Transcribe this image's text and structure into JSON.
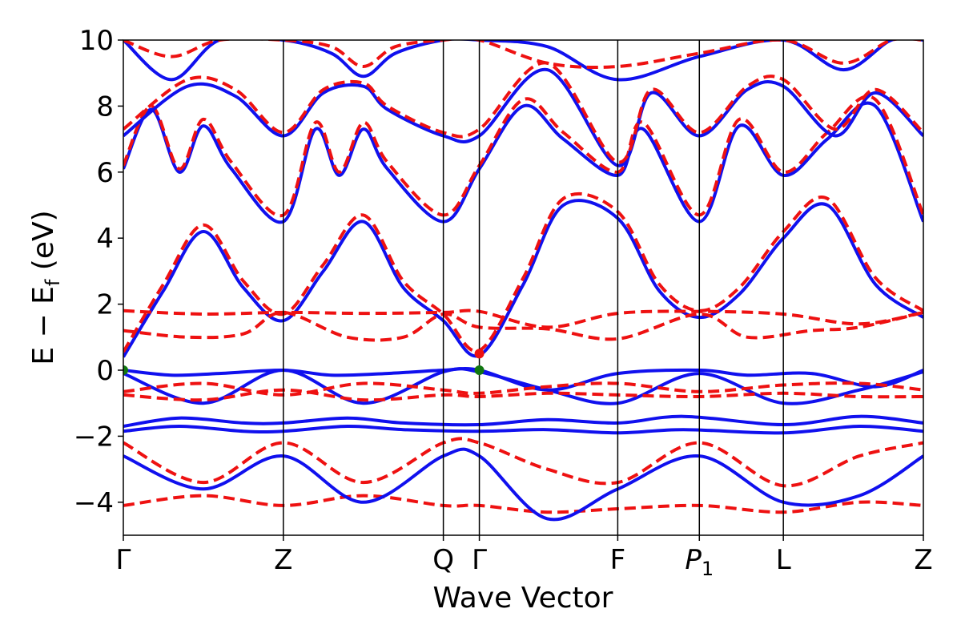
{
  "chart_data": {
    "type": "line",
    "title": "",
    "xlabel": "Wave Vector",
    "ylabel": "E − E_f (eV)",
    "ylabel_main": "E − E",
    "ylabel_sub": "f",
    "ylabel_unit": " (eV)",
    "ylim": [
      -5,
      10
    ],
    "yticks": [
      -4,
      -2,
      0,
      2,
      4,
      6,
      8,
      10
    ],
    "ytick_labels": [
      "−4",
      "−2",
      "0",
      "2",
      "4",
      "6",
      "8",
      "10"
    ],
    "xlim": [
      0,
      10
    ],
    "kpoints": [
      {
        "label": "Γ",
        "sub": "",
        "x": 0
      },
      {
        "label": "Z",
        "sub": "",
        "x": 2.0
      },
      {
        "label": "Q",
        "sub": "",
        "x": 4.0
      },
      {
        "label": "Γ",
        "sub": "",
        "x": 4.45
      },
      {
        "label": "F",
        "sub": "",
        "x": 6.18
      },
      {
        "label": "P",
        "sub": "1",
        "x": 7.2
      },
      {
        "label": "L",
        "sub": "",
        "x": 8.25
      },
      {
        "label": "Z",
        "sub": "",
        "x": 10.0
      }
    ],
    "colors": {
      "blue": "#1010ee",
      "red": "#ee1111",
      "green": "#117711",
      "black": "#000000"
    },
    "markers": [
      {
        "x": 0,
        "y": 0.0,
        "color": "green"
      },
      {
        "x": 4.45,
        "y": 0.0,
        "color": "green"
      },
      {
        "x": 4.45,
        "y": 0.5,
        "color": "red"
      }
    ],
    "series": [
      {
        "name": "blue-cb1",
        "style": "solid",
        "color": "blue",
        "x": [
          0,
          0.5,
          1.0,
          1.5,
          2.0,
          2.5,
          3.0,
          3.5,
          4.0,
          4.45,
          5.0,
          5.5,
          6.18,
          6.7,
          7.2,
          7.7,
          8.25,
          8.8,
          9.4,
          10.0
        ],
        "y": [
          0.4,
          2.4,
          4.2,
          2.5,
          1.5,
          3.0,
          4.5,
          2.5,
          1.5,
          0.45,
          2.6,
          5.0,
          4.6,
          2.4,
          1.6,
          2.3,
          4.0,
          5.0,
          2.6,
          1.6
        ]
      },
      {
        "name": "red-cb1",
        "style": "dashed",
        "color": "red",
        "x": [
          0,
          0.5,
          1.0,
          1.5,
          2.0,
          2.5,
          3.0,
          3.5,
          4.0,
          4.45,
          5.0,
          5.5,
          6.18,
          6.7,
          7.2,
          7.7,
          8.25,
          8.8,
          9.4,
          10.0
        ],
        "y": [
          0.55,
          2.6,
          4.4,
          2.7,
          1.7,
          3.2,
          4.7,
          2.7,
          1.7,
          0.6,
          2.8,
          5.2,
          4.8,
          2.6,
          1.8,
          2.5,
          4.2,
          5.2,
          2.8,
          1.8
        ]
      },
      {
        "name": "red-flat-a",
        "style": "dashed",
        "color": "red",
        "x": [
          0,
          1.0,
          2.0,
          3.0,
          4.0,
          4.45,
          5.3,
          6.18,
          7.2,
          8.25,
          9.2,
          10.0
        ],
        "y": [
          1.8,
          1.7,
          1.75,
          1.72,
          1.75,
          1.78,
          1.3,
          1.72,
          1.78,
          1.7,
          1.4,
          1.75
        ]
      },
      {
        "name": "red-flat-b",
        "style": "dashed",
        "color": "red",
        "x": [
          0,
          0.8,
          1.5,
          2.0,
          2.8,
          3.5,
          4.0,
          4.45,
          5.3,
          6.18,
          7.2,
          7.8,
          8.6,
          9.2,
          10.0
        ],
        "y": [
          1.2,
          1.0,
          1.1,
          1.75,
          1.0,
          1.0,
          1.7,
          1.3,
          1.25,
          0.95,
          1.7,
          1.0,
          1.2,
          1.3,
          1.75
        ]
      },
      {
        "name": "blue-vb-top",
        "style": "solid",
        "color": "blue",
        "x": [
          0,
          0.6,
          1.2,
          2.0,
          2.6,
          3.3,
          4.0,
          4.45,
          5.3,
          6.18,
          7.2,
          7.8,
          8.6,
          9.4,
          10.0
        ],
        "y": [
          0.0,
          -0.15,
          -0.1,
          0.0,
          -0.15,
          -0.1,
          0.0,
          0.0,
          -0.6,
          -0.1,
          0.0,
          -0.15,
          -0.1,
          -0.5,
          0.0
        ]
      },
      {
        "name": "blue-vb-2",
        "style": "solid",
        "color": "blue",
        "x": [
          0,
          1.0,
          2.0,
          3.0,
          4.0,
          4.45,
          5.3,
          6.18,
          7.2,
          8.25,
          9.2,
          10.0
        ],
        "y": [
          -0.1,
          -1.0,
          0.0,
          -1.0,
          -0.05,
          -0.05,
          -0.6,
          -1.0,
          -0.1,
          -1.0,
          -0.6,
          -0.05
        ]
      },
      {
        "name": "red-vb-a",
        "style": "dashed",
        "color": "red",
        "x": [
          0,
          1.0,
          2.0,
          3.0,
          4.0,
          4.45,
          5.3,
          6.18,
          7.2,
          8.25,
          9.2,
          10.0
        ],
        "y": [
          -0.65,
          -0.4,
          -0.75,
          -0.4,
          -0.6,
          -0.7,
          -0.5,
          -0.4,
          -0.65,
          -0.45,
          -0.4,
          -0.6
        ]
      },
      {
        "name": "red-vb-b",
        "style": "dashed",
        "color": "red",
        "x": [
          0,
          1.0,
          2.0,
          3.0,
          4.0,
          4.45,
          5.3,
          6.18,
          7.2,
          8.25,
          9.2,
          10.0
        ],
        "y": [
          -0.75,
          -0.9,
          -0.6,
          -0.9,
          -0.75,
          -0.8,
          -0.7,
          -0.75,
          -0.8,
          -0.7,
          -0.8,
          -0.8
        ]
      },
      {
        "name": "blue-d1",
        "style": "solid",
        "color": "blue",
        "x": [
          0,
          0.7,
          1.5,
          2.0,
          2.8,
          3.5,
          4.45,
          5.3,
          6.18,
          7.0,
          8.25,
          9.2,
          10.0
        ],
        "y": [
          -1.7,
          -1.45,
          -1.6,
          -1.6,
          -1.45,
          -1.6,
          -1.65,
          -1.5,
          -1.6,
          -1.4,
          -1.65,
          -1.4,
          -1.6
        ]
      },
      {
        "name": "blue-d2",
        "style": "solid",
        "color": "blue",
        "x": [
          0,
          0.7,
          1.5,
          2.0,
          2.8,
          3.5,
          4.45,
          5.3,
          6.18,
          7.0,
          8.25,
          9.2,
          10.0
        ],
        "y": [
          -1.85,
          -1.7,
          -1.85,
          -1.85,
          -1.7,
          -1.8,
          -1.85,
          -1.8,
          -1.9,
          -1.8,
          -1.9,
          -1.7,
          -1.85
        ]
      },
      {
        "name": "red-vb-low1",
        "style": "dashed",
        "color": "red",
        "x": [
          0,
          1.0,
          2.0,
          3.0,
          4.0,
          4.45,
          5.3,
          6.18,
          7.2,
          8.25,
          9.2,
          10.0
        ],
        "y": [
          -2.2,
          -3.4,
          -2.2,
          -3.4,
          -2.2,
          -2.2,
          -3.0,
          -3.4,
          -2.2,
          -3.5,
          -2.6,
          -2.2
        ]
      },
      {
        "name": "red-vb-low2",
        "style": "dashed",
        "color": "red",
        "x": [
          0,
          1.0,
          2.0,
          3.0,
          4.0,
          4.45,
          5.3,
          6.18,
          7.2,
          8.25,
          9.2,
          10.0
        ],
        "y": [
          -4.1,
          -3.8,
          -4.1,
          -3.8,
          -4.1,
          -4.1,
          -4.3,
          -4.2,
          -4.1,
          -4.3,
          -4.0,
          -4.1
        ]
      },
      {
        "name": "blue-vb-low",
        "style": "solid",
        "color": "blue",
        "x": [
          0,
          1.0,
          2.0,
          3.0,
          4.0,
          4.45,
          5.3,
          6.18,
          7.2,
          8.25,
          9.2,
          10.0
        ],
        "y": [
          -2.6,
          -3.6,
          -2.6,
          -4.0,
          -2.6,
          -2.6,
          -4.5,
          -3.6,
          -2.6,
          -4.0,
          -3.8,
          -2.6
        ]
      },
      {
        "name": "blue-cb2",
        "style": "solid",
        "color": "blue",
        "x": [
          0,
          0.35,
          0.7,
          1.0,
          1.35,
          2.0,
          2.4,
          2.7,
          3.0,
          3.3,
          4.0,
          4.45,
          5.0,
          5.5,
          6.18,
          6.5,
          7.2,
          7.7,
          8.25,
          8.8,
          9.4,
          10.0
        ],
        "y": [
          6.1,
          7.9,
          6.0,
          7.4,
          6.1,
          4.5,
          7.3,
          5.9,
          7.3,
          6.1,
          4.5,
          6.1,
          8.0,
          7.0,
          5.9,
          7.3,
          4.5,
          7.4,
          5.9,
          7.0,
          8.0,
          4.5
        ]
      },
      {
        "name": "red-cb2",
        "style": "dashed",
        "color": "red",
        "x": [
          0,
          0.35,
          0.7,
          1.0,
          1.35,
          2.0,
          2.4,
          2.7,
          3.0,
          3.3,
          4.0,
          4.45,
          5.0,
          5.5,
          6.18,
          6.5,
          7.2,
          7.7,
          8.25,
          8.8,
          9.4,
          10.0
        ],
        "y": [
          6.2,
          8.0,
          6.1,
          7.6,
          6.3,
          4.7,
          7.5,
          6.0,
          7.5,
          6.3,
          4.7,
          6.2,
          8.2,
          7.2,
          6.0,
          7.5,
          4.7,
          7.6,
          6.0,
          7.2,
          8.2,
          4.7
        ]
      },
      {
        "name": "blue-cb3",
        "style": "solid",
        "color": "blue",
        "x": [
          0,
          0.8,
          1.4,
          2.0,
          2.5,
          3.0,
          3.3,
          4.0,
          4.45,
          5.3,
          6.18,
          6.6,
          7.2,
          7.8,
          8.25,
          8.9,
          9.4,
          10.0
        ],
        "y": [
          7.1,
          8.6,
          8.3,
          7.1,
          8.4,
          8.6,
          7.9,
          7.1,
          7.1,
          9.1,
          6.2,
          8.4,
          7.1,
          8.5,
          8.6,
          7.1,
          8.4,
          7.1
        ]
      },
      {
        "name": "red-cb3",
        "style": "dashed",
        "color": "red",
        "x": [
          0,
          0.8,
          1.4,
          2.0,
          2.5,
          3.0,
          3.3,
          4.0,
          4.45,
          5.3,
          6.18,
          6.6,
          7.2,
          7.8,
          8.25,
          8.9,
          9.4,
          10.0
        ],
        "y": [
          7.3,
          8.8,
          8.5,
          7.2,
          8.5,
          8.7,
          8.0,
          7.2,
          7.3,
          9.3,
          6.3,
          8.5,
          7.2,
          8.6,
          8.8,
          7.3,
          8.5,
          7.2
        ]
      },
      {
        "name": "blue-cb4",
        "style": "solid",
        "color": "blue",
        "x": [
          0,
          0.6,
          1.2,
          2.0,
          2.6,
          3.0,
          3.4,
          4.0,
          4.45,
          5.3,
          6.18,
          7.2,
          8.25,
          9.0,
          9.6,
          10.0
        ],
        "y": [
          10.0,
          8.8,
          10.0,
          10.0,
          9.6,
          8.9,
          9.6,
          10.0,
          10.0,
          9.8,
          8.8,
          9.5,
          10.0,
          9.1,
          10.0,
          10.0
        ]
      },
      {
        "name": "red-cb4",
        "style": "dashed",
        "color": "red",
        "x": [
          0,
          0.6,
          1.2,
          2.0,
          2.6,
          3.0,
          3.4,
          4.0,
          4.45,
          5.3,
          6.18,
          7.2,
          8.25,
          9.0,
          9.6,
          10.0
        ],
        "y": [
          10.0,
          9.5,
          10.0,
          10.0,
          9.8,
          9.2,
          9.8,
          10.0,
          10.0,
          9.3,
          9.2,
          9.6,
          10.0,
          9.3,
          10.0,
          10.0
        ]
      }
    ]
  }
}
